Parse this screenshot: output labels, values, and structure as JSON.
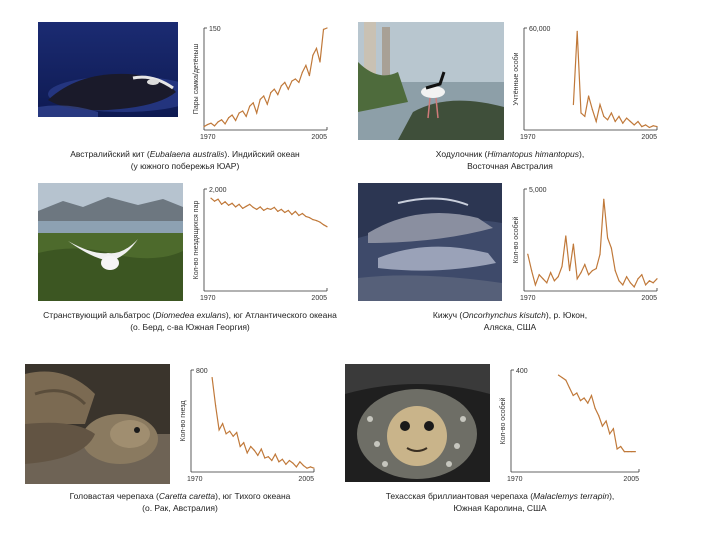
{
  "panels": [
    {
      "photo_subject": "whale",
      "caption_line1_pre": "Австралийский кит (",
      "caption_line1_latin": "Eubalaena australis",
      "caption_line1_post": "). Индийский океан",
      "caption_line2": "(у южного побережья ЮАР)",
      "chart_data": {
        "type": "line",
        "ylabel": "Пары самка/детёныш",
        "x_start_label": "1970",
        "x_end_label": "2005",
        "y_max_label": "150",
        "xlim": [
          1970,
          2005
        ],
        "ylim": [
          0,
          150
        ],
        "color": "#c0793a",
        "x": [
          1970,
          1971,
          1972,
          1973,
          1974,
          1975,
          1976,
          1977,
          1978,
          1979,
          1980,
          1981,
          1982,
          1983,
          1984,
          1985,
          1986,
          1987,
          1988,
          1989,
          1990,
          1991,
          1992,
          1993,
          1994,
          1995,
          1996,
          1997,
          1998,
          1999,
          2000,
          2001,
          2002,
          2003,
          2004,
          2005
        ],
        "values": [
          5,
          8,
          10,
          6,
          12,
          15,
          9,
          18,
          22,
          14,
          25,
          28,
          20,
          35,
          40,
          25,
          45,
          50,
          38,
          55,
          60,
          52,
          65,
          70,
          60,
          72,
          75,
          70,
          85,
          95,
          80,
          110,
          120,
          100,
          148,
          150
        ]
      }
    },
    {
      "photo_subject": "stilt",
      "caption_line1_pre": "Ходулочник (",
      "caption_line1_latin": "Himantopus himantopus",
      "caption_line1_post": "),",
      "caption_line2": "Восточная Австралия",
      "chart_data": {
        "type": "line",
        "ylabel": "Учтённые особи",
        "x_start_label": "1970",
        "x_end_label": "2005",
        "y_max_label": "60,000",
        "xlim": [
          1970,
          2005
        ],
        "ylim": [
          0,
          60000
        ],
        "color": "#c0793a",
        "x": [
          1983,
          1984,
          1985,
          1986,
          1987,
          1988,
          1989,
          1990,
          1991,
          1992,
          1993,
          1994,
          1995,
          1996,
          1997,
          1998,
          1999,
          2000,
          2001,
          2002,
          2003,
          2004,
          2005
        ],
        "values": [
          15000,
          58000,
          10000,
          8000,
          20000,
          12000,
          5000,
          15000,
          8000,
          6000,
          10000,
          5000,
          8000,
          4000,
          7000,
          5000,
          3000,
          5000,
          2000,
          3000,
          1500,
          2500,
          2000
        ]
      }
    },
    {
      "photo_subject": "albatross",
      "caption_line1_pre": "Странствующий альбатрос (",
      "caption_line1_latin": "Diomedea exulans",
      "caption_line1_post": "), юг Атлантического океана",
      "caption_line2": "(о. Берд, с-ва Южная Георгия)",
      "chart_data": {
        "type": "line",
        "ylabel": "Кол-во гнездящихся пар",
        "x_start_label": "1970",
        "x_end_label": "2005",
        "y_max_label": "2,000",
        "xlim": [
          1970,
          2005
        ],
        "ylim": [
          0,
          2000
        ],
        "color": "#c0793a",
        "x": [
          1972,
          1973,
          1974,
          1975,
          1976,
          1977,
          1978,
          1979,
          1980,
          1981,
          1982,
          1983,
          1984,
          1985,
          1986,
          1987,
          1988,
          1989,
          1990,
          1991,
          1992,
          1993,
          1994,
          1995,
          1996,
          1997,
          1998,
          1999,
          2000,
          2001,
          2002,
          2003,
          2004,
          2005
        ],
        "values": [
          1820,
          1760,
          1800,
          1700,
          1750,
          1680,
          1720,
          1650,
          1700,
          1620,
          1660,
          1700,
          1640,
          1600,
          1650,
          1580,
          1620,
          1600,
          1640,
          1560,
          1600,
          1540,
          1580,
          1500,
          1560,
          1480,
          1520,
          1460,
          1440,
          1400,
          1380,
          1350,
          1300,
          1260
        ]
      }
    },
    {
      "photo_subject": "salmon",
      "caption_line1_pre": "Кижуч (",
      "caption_line1_latin": "Oncorhynchus kisutch",
      "caption_line1_post": "), р. Юкон,",
      "caption_line2": "Аляска, США",
      "chart_data": {
        "type": "line",
        "ylabel": "Кол-во особей",
        "x_start_label": "1970",
        "x_end_label": "2005",
        "y_max_label": "5,000",
        "xlim": [
          1970,
          2005
        ],
        "ylim": [
          0,
          5000
        ],
        "color": "#c0793a",
        "x": [
          1971,
          1972,
          1973,
          1974,
          1975,
          1976,
          1977,
          1978,
          1979,
          1980,
          1981,
          1982,
          1983,
          1984,
          1985,
          1986,
          1987,
          1988,
          1989,
          1990,
          1991,
          1992,
          1993,
          1994,
          1995,
          1996,
          1997,
          1998,
          1999,
          2000,
          2001,
          2002,
          2003,
          2004,
          2005
        ],
        "values": [
          1800,
          1000,
          300,
          800,
          600,
          400,
          900,
          500,
          700,
          1200,
          2700,
          1000,
          2300,
          600,
          900,
          1300,
          800,
          1000,
          1100,
          1800,
          4500,
          2600,
          2100,
          1000,
          500,
          300,
          700,
          400,
          200,
          600,
          800,
          300,
          500,
          400,
          600
        ]
      }
    },
    {
      "photo_subject": "sea-turtle",
      "caption_line1_pre": "Головастая черепаха (",
      "caption_line1_latin": "Caretta caretta",
      "caption_line1_post": "), юг Тихого океана",
      "caption_line2": "(о. Рак, Австралия)",
      "chart_data": {
        "type": "line",
        "ylabel": "Кол-во гнезд",
        "x_start_label": "1970",
        "x_end_label": "2005",
        "y_max_label": "800",
        "xlim": [
          1970,
          2005
        ],
        "ylim": [
          0,
          800
        ],
        "color": "#c0793a",
        "x": [
          1976,
          1977,
          1978,
          1979,
          1980,
          1981,
          1982,
          1983,
          1984,
          1985,
          1986,
          1987,
          1988,
          1989,
          1990,
          1991,
          1992,
          1993,
          1994,
          1995,
          1996,
          1997,
          1998,
          1999,
          2000,
          2001,
          2002,
          2003,
          2004,
          2005
        ],
        "values": [
          740,
          520,
          330,
          380,
          300,
          320,
          280,
          310,
          200,
          230,
          150,
          200,
          170,
          130,
          180,
          110,
          120,
          90,
          140,
          80,
          100,
          60,
          90,
          70,
          40,
          80,
          50,
          30,
          40,
          30
        ]
      }
    },
    {
      "photo_subject": "terrapin",
      "caption_line1_pre": "Техасская бриллиантовая черепаха (",
      "caption_line1_latin": "Malaclemys terrapin",
      "caption_line1_post": "),",
      "caption_line2": "Южная Каролина, США",
      "chart_data": {
        "type": "line",
        "ylabel": "Кол-во особей",
        "x_start_label": "1970",
        "x_end_label": "2005",
        "y_max_label": "400",
        "xlim": [
          1970,
          2005
        ],
        "ylim": [
          0,
          400
        ],
        "color": "#c0793a",
        "x": [
          1983,
          1984,
          1985,
          1986,
          1987,
          1988,
          1989,
          1990,
          1991,
          1992,
          1993,
          1994,
          1995,
          1996,
          1997,
          1998,
          1999,
          2000,
          2001,
          2002,
          2003,
          2004
        ],
        "values": [
          380,
          370,
          360,
          330,
          300,
          310,
          280,
          290,
          270,
          300,
          250,
          220,
          180,
          200,
          150,
          170,
          90,
          100,
          80,
          80,
          80,
          80
        ]
      }
    }
  ]
}
